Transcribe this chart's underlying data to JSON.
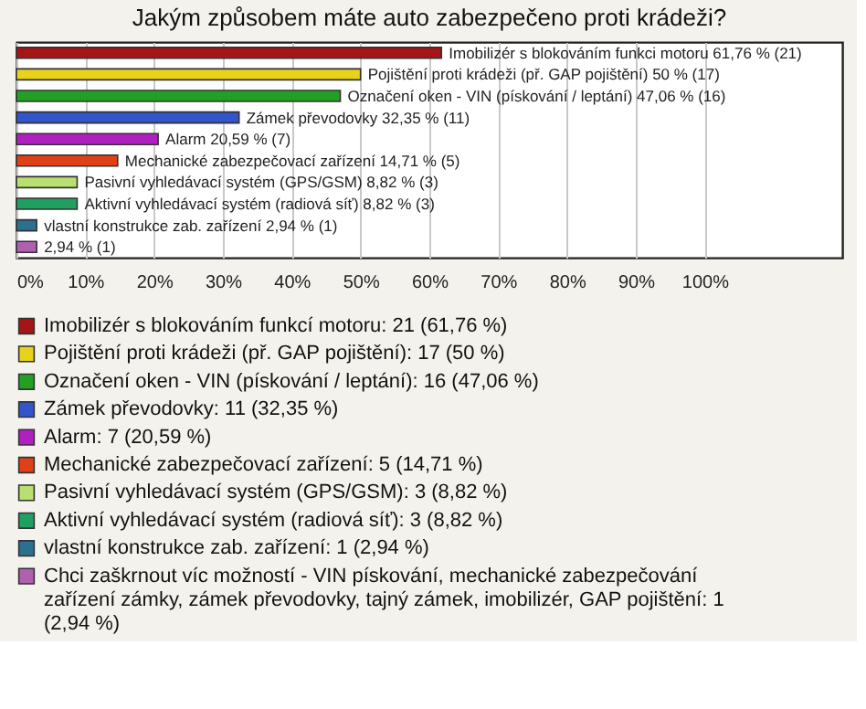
{
  "chart_data": {
    "type": "bar",
    "orientation": "horizontal",
    "title": "Jakým způsobem máte auto zabezpečeno proti krádeži?",
    "categories": [
      "Imobilizér s blokováním funkci motoru",
      "Pojištění proti krádeži (př. GAP pojištění)",
      "Označení oken - VIN (pískování / leptání)",
      "Zámek převodovky",
      "Alarm",
      "Mechanické zabezpečovací zařízení",
      "Pasivní vyhledávací systém (GPS/GSM)",
      "Aktivní vyhledávací systém (radiová síť)",
      "vlastní konstrukce zab. zařízení",
      null
    ],
    "series": [
      {
        "name": "Imobilizér s blokováním funkcí motoru: 21 (61,76 %)",
        "color": "#a51515",
        "values": [
          61.76,
          null,
          null,
          null,
          null,
          null,
          null,
          null,
          null,
          null
        ],
        "value_labels": [
          "61,76 % (21)",
          null,
          null,
          null,
          null,
          null,
          null,
          null,
          null,
          null
        ]
      },
      {
        "name": "Pojištění proti krádeži (př. GAP pojištění): 17 (50 %)",
        "color": "#e8d21a",
        "values": [
          null,
          50,
          null,
          null,
          null,
          null,
          null,
          null,
          null,
          null
        ],
        "value_labels": [
          null,
          "50 % (17)",
          null,
          null,
          null,
          null,
          null,
          null,
          null,
          null
        ]
      },
      {
        "name": "Označení oken - VIN (pískování / leptání): 16 (47,06 %)",
        "color": "#22a022",
        "values": [
          null,
          null,
          47.06,
          null,
          null,
          null,
          null,
          null,
          null,
          null
        ],
        "value_labels": [
          null,
          null,
          "47,06 % (16)",
          null,
          null,
          null,
          null,
          null,
          null,
          null
        ]
      },
      {
        "name": "Zámek převodovky: 11 (32,35 %)",
        "color": "#3355cc",
        "values": [
          null,
          null,
          null,
          32.35,
          null,
          null,
          null,
          null,
          null,
          null
        ],
        "value_labels": [
          null,
          null,
          null,
          "32,35 % (11)",
          null,
          null,
          null,
          null,
          null,
          null
        ]
      },
      {
        "name": "Alarm: 7 (20,59 %)",
        "color": "#b020c0",
        "values": [
          null,
          null,
          null,
          null,
          20.59,
          null,
          null,
          null,
          null,
          null
        ],
        "value_labels": [
          null,
          null,
          null,
          null,
          "20,59 % (7)",
          null,
          null,
          null,
          null,
          null
        ]
      },
      {
        "name": "Mechanické zabezpečovací zařízení: 5 (14,71 %)",
        "color": "#e04015",
        "values": [
          null,
          null,
          null,
          null,
          null,
          14.71,
          null,
          null,
          null,
          null
        ],
        "value_labels": [
          null,
          null,
          null,
          null,
          null,
          "14,71 % (5)",
          null,
          null,
          null,
          null
        ]
      },
      {
        "name": "Pasivní vyhledávací systém (GPS/GSM): 3 (8,82 %)",
        "color": "#b8e070",
        "values": [
          null,
          null,
          null,
          null,
          null,
          null,
          8.82,
          null,
          null,
          null
        ],
        "value_labels": [
          null,
          null,
          null,
          null,
          null,
          null,
          "8,82 % (3)",
          null,
          null,
          null
        ]
      },
      {
        "name": "Aktivní vyhledávací systém (radiová síť): 3 (8,82 %)",
        "color": "#20a060",
        "values": [
          null,
          null,
          null,
          null,
          null,
          null,
          null,
          8.82,
          null,
          null
        ],
        "value_labels": [
          null,
          null,
          null,
          null,
          null,
          null,
          null,
          "8,82 % (3)",
          null,
          null
        ]
      },
      {
        "name": "vlastní konstrukce zab. zařízení: 1 (2,94 %)",
        "color": "#2a7090",
        "values": [
          null,
          null,
          null,
          null,
          null,
          null,
          null,
          null,
          2.94,
          null
        ],
        "value_labels": [
          null,
          null,
          null,
          null,
          null,
          null,
          null,
          null,
          "2,94 % (1)",
          null
        ]
      },
      {
        "name": "Chci zaškrnout víc možností - VIN pískování, mechanické zabezpečování zařízení zámky, zámek převodovky, tajný zámek, imobilizér, GAP pojištění: 1 (2,94 %)",
        "color": "#b060b0",
        "values": [
          null,
          null,
          null,
          null,
          null,
          null,
          null,
          null,
          null,
          2.94
        ],
        "value_labels": [
          null,
          null,
          null,
          null,
          null,
          null,
          null,
          null,
          null,
          "2,94 % (1)"
        ]
      }
    ],
    "xlim": [
      0,
      120
    ],
    "xticks": [
      {
        "value": 0,
        "label": "0%"
      },
      {
        "value": 10,
        "label": "10%"
      },
      {
        "value": 20,
        "label": "20%"
      },
      {
        "value": 30,
        "label": "30%"
      },
      {
        "value": 40,
        "label": "40%"
      },
      {
        "value": 50,
        "label": "50%"
      },
      {
        "value": 60,
        "label": "60%"
      },
      {
        "value": 70,
        "label": "70%"
      },
      {
        "value": 80,
        "label": "80%"
      },
      {
        "value": 90,
        "label": "90%"
      },
      {
        "value": 100,
        "label": "100%"
      }
    ],
    "grid": "x",
    "legend": "bottom"
  }
}
